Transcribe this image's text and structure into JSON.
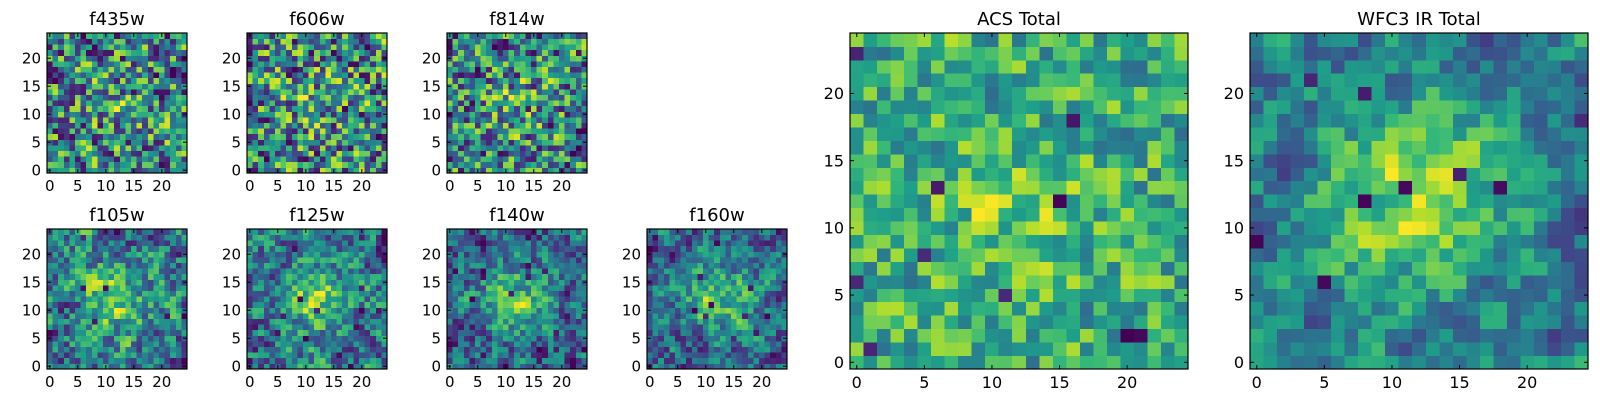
{
  "chart_data": [
    {
      "type": "heatmap",
      "title": "f435w",
      "colormap": "viridis",
      "grid": false,
      "xlim": [
        -0.5,
        24.5
      ],
      "ylim": [
        -0.5,
        24.5
      ],
      "xticks": [
        0,
        5,
        10,
        15,
        20
      ],
      "yticks": [
        0,
        5,
        10,
        15,
        20
      ],
      "rows": 25,
      "cols": 25,
      "seed": 11,
      "smooth": 0.15,
      "center_peak": 0.1
    },
    {
      "type": "heatmap",
      "title": "f606w",
      "colormap": "viridis",
      "grid": false,
      "xlim": [
        -0.5,
        24.5
      ],
      "ylim": [
        -0.5,
        24.5
      ],
      "xticks": [
        0,
        5,
        10,
        15,
        20
      ],
      "yticks": [
        0,
        5,
        10,
        15,
        20
      ],
      "rows": 25,
      "cols": 25,
      "seed": 23,
      "smooth": 0.15,
      "center_peak": 0.1
    },
    {
      "type": "heatmap",
      "title": "f814w",
      "colormap": "viridis",
      "grid": false,
      "xlim": [
        -0.5,
        24.5
      ],
      "ylim": [
        -0.5,
        24.5
      ],
      "xticks": [
        0,
        5,
        10,
        15,
        20
      ],
      "yticks": [
        0,
        5,
        10,
        15,
        20
      ],
      "rows": 25,
      "cols": 25,
      "seed": 37,
      "smooth": 0.15,
      "center_peak": 0.15
    },
    {
      "type": "heatmap",
      "title": "f105w",
      "colormap": "viridis",
      "grid": false,
      "xlim": [
        -0.5,
        24.5
      ],
      "ylim": [
        -0.5,
        24.5
      ],
      "xticks": [
        0,
        5,
        10,
        15,
        20
      ],
      "yticks": [
        0,
        5,
        10,
        15,
        20
      ],
      "rows": 25,
      "cols": 25,
      "seed": 41,
      "smooth": 0.45,
      "center_peak": 0.35
    },
    {
      "type": "heatmap",
      "title": "f125w",
      "colormap": "viridis",
      "grid": false,
      "xlim": [
        -0.5,
        24.5
      ],
      "ylim": [
        -0.5,
        24.5
      ],
      "xticks": [
        0,
        5,
        10,
        15,
        20
      ],
      "yticks": [
        0,
        5,
        10,
        15,
        20
      ],
      "rows": 25,
      "cols": 25,
      "seed": 53,
      "smooth": 0.45,
      "center_peak": 0.35
    },
    {
      "type": "heatmap",
      "title": "f140w",
      "colormap": "viridis",
      "grid": false,
      "xlim": [
        -0.5,
        24.5
      ],
      "ylim": [
        -0.5,
        24.5
      ],
      "xticks": [
        0,
        5,
        10,
        15,
        20
      ],
      "yticks": [
        0,
        5,
        10,
        15,
        20
      ],
      "rows": 25,
      "cols": 25,
      "seed": 67,
      "smooth": 0.45,
      "center_peak": 0.4
    },
    {
      "type": "heatmap",
      "title": "f160w",
      "colormap": "viridis",
      "grid": false,
      "xlim": [
        -0.5,
        24.5
      ],
      "ylim": [
        -0.5,
        24.5
      ],
      "xticks": [
        0,
        5,
        10,
        15,
        20
      ],
      "yticks": [
        0,
        5,
        10,
        15,
        20
      ],
      "rows": 25,
      "cols": 25,
      "seed": 79,
      "smooth": 0.5,
      "center_peak": 0.45
    },
    {
      "type": "heatmap",
      "title": "ACS Total",
      "colormap": "viridis",
      "grid": false,
      "xlim": [
        -0.5,
        24.5
      ],
      "ylim": [
        -0.5,
        24.5
      ],
      "xticks": [
        0,
        5,
        10,
        15,
        20
      ],
      "yticks": [
        0,
        5,
        10,
        15,
        20
      ],
      "rows": 25,
      "cols": 25,
      "seed": 97,
      "smooth": 0.3,
      "center_peak": 0.2,
      "floor": 0.35
    },
    {
      "type": "heatmap",
      "title": "WFC3 IR Total",
      "colormap": "viridis",
      "grid": false,
      "xlim": [
        -0.5,
        24.5
      ],
      "ylim": [
        -0.5,
        24.5
      ],
      "xticks": [
        0,
        5,
        10,
        15,
        20
      ],
      "yticks": [
        0,
        5,
        10,
        15,
        20
      ],
      "rows": 25,
      "cols": 25,
      "seed": 113,
      "smooth": 0.6,
      "center_peak": 0.55,
      "floor": 0.15
    }
  ],
  "colors": {
    "axis": "#000000",
    "background": "#ffffff"
  }
}
